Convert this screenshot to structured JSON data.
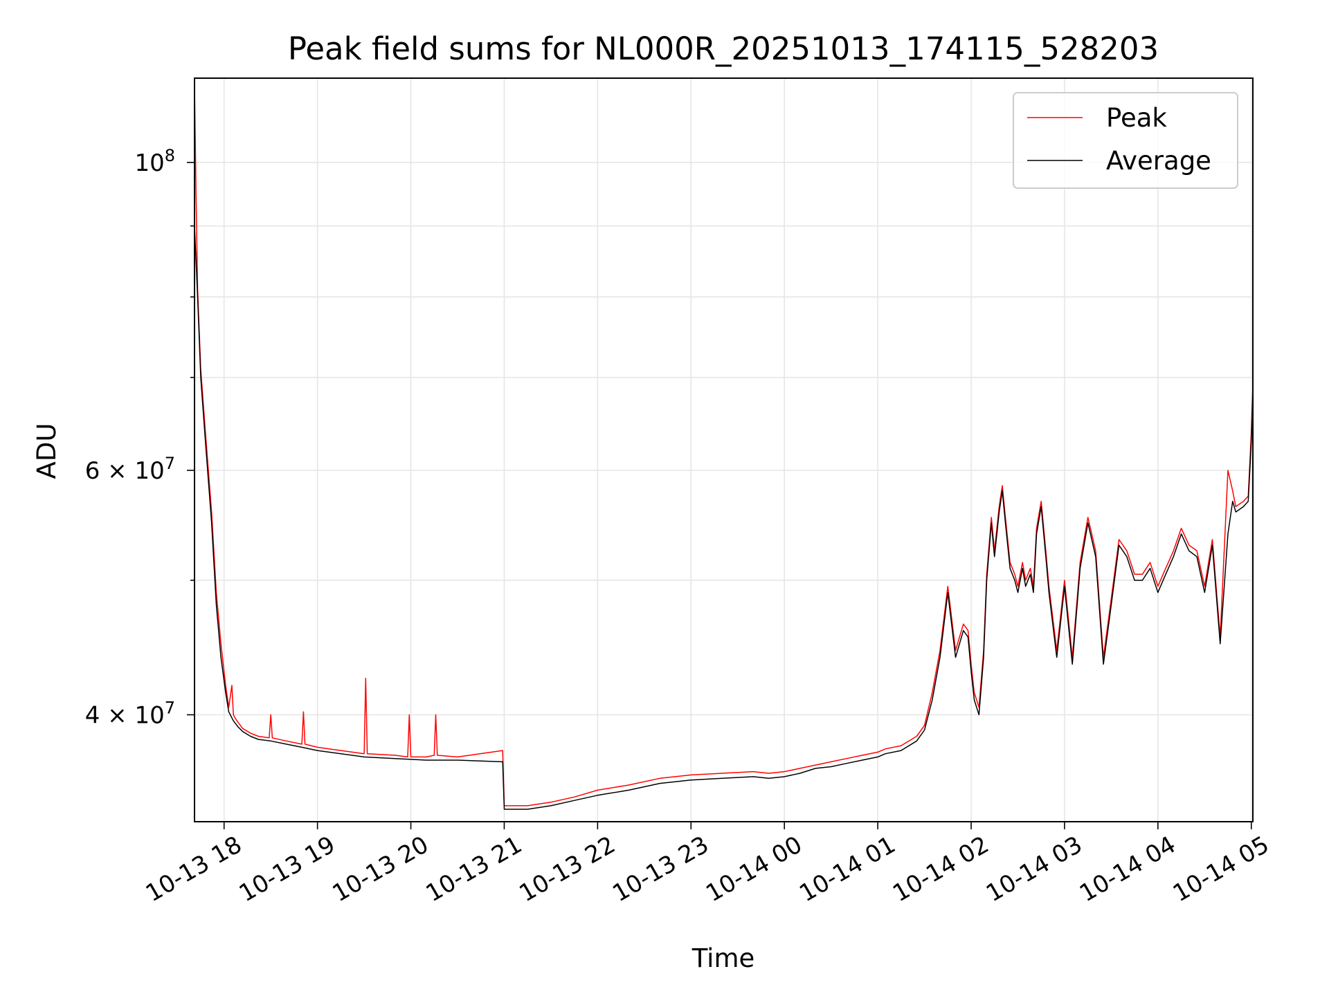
{
  "chart_data": {
    "type": "line",
    "title": "Peak field sums for NL000R_20251013_174115_528203",
    "xlabel": "Time",
    "ylabel": "ADU",
    "x_ticks": [
      "10-13 18",
      "10-13 19",
      "10-13 20",
      "10-13 21",
      "10-13 22",
      "10-13 23",
      "10-14 00",
      "10-14 01",
      "10-14 02",
      "10-14 03",
      "10-14 04",
      "10-14 05"
    ],
    "xlim": [
      "2025-10-13 17:41",
      "2025-10-14 05:01"
    ],
    "y_scale": "log",
    "ylim": [
      33500000,
      115000000
    ],
    "y_tick_labels": [
      {
        "value": 40000000,
        "mantissa": "4",
        "exponent": "7"
      },
      {
        "value": 60000000,
        "mantissa": "6",
        "exponent": "7"
      },
      {
        "value": 100000000,
        "base": "10",
        "exponent": "8"
      }
    ],
    "y_minor_ticks": [
      50000000,
      70000000,
      80000000,
      90000000
    ],
    "grid": true,
    "legend": {
      "position": "top-right",
      "entries": [
        "Peak",
        "Average"
      ]
    },
    "series": [
      {
        "name": "Average",
        "color": "#000000",
        "x": [
          "17:41",
          "17:43",
          "17:45",
          "17:48",
          "17:52",
          "17:55",
          "17:58",
          "18:01",
          "18:03",
          "18:06",
          "18:09",
          "18:12",
          "18:17",
          "18:22",
          "18:30",
          "18:40",
          "18:50",
          "19:00",
          "19:15",
          "19:30",
          "19:50",
          "20:10",
          "20:30",
          "20:59",
          "21:00",
          "21:15",
          "21:30",
          "21:45",
          "22:00",
          "22:20",
          "22:40",
          "23:00",
          "23:20",
          "23:40",
          "23:50",
          "00:00",
          "00:10",
          "00:20",
          "00:30",
          "00:40",
          "00:50",
          "01:00",
          "01:05",
          "01:15",
          "01:25",
          "01:30",
          "01:35",
          "01:40",
          "01:45",
          "01:50",
          "01:55",
          "01:58",
          "02:00",
          "02:02",
          "02:05",
          "02:08",
          "02:10",
          "02:13",
          "02:15",
          "02:18",
          "02:20",
          "02:22",
          "02:25",
          "02:28",
          "02:30",
          "02:33",
          "02:35",
          "02:38",
          "02:40",
          "02:42",
          "02:45",
          "02:48",
          "02:50",
          "02:55",
          "03:00",
          "03:05",
          "03:10",
          "03:15",
          "03:20",
          "03:25",
          "03:30",
          "03:35",
          "03:40",
          "03:45",
          "03:50",
          "03:55",
          "04:00",
          "04:05",
          "04:10",
          "04:15",
          "04:20",
          "04:25",
          "04:30",
          "04:35",
          "04:40",
          "04:45",
          "04:48",
          "04:50",
          "04:55",
          "04:58",
          "05:00",
          "05:01"
        ],
        "y": [
          90000000,
          80000000,
          70000000,
          63000000,
          55000000,
          48000000,
          44000000,
          41500000,
          40200000,
          39600000,
          39200000,
          38900000,
          38600000,
          38400000,
          38300000,
          38100000,
          37900000,
          37700000,
          37500000,
          37300000,
          37200000,
          37100000,
          37100000,
          37000000,
          34200000,
          34200000,
          34400000,
          34700000,
          35000000,
          35300000,
          35700000,
          35900000,
          36000000,
          36100000,
          36000000,
          36100000,
          36300000,
          36600000,
          36700000,
          36900000,
          37100000,
          37300000,
          37500000,
          37700000,
          38300000,
          39000000,
          41000000,
          44000000,
          49000000,
          44000000,
          46000000,
          45500000,
          43000000,
          41000000,
          40000000,
          44000000,
          50000000,
          55000000,
          52000000,
          56000000,
          58000000,
          55000000,
          51000000,
          50000000,
          49000000,
          51000000,
          49500000,
          50500000,
          49000000,
          54000000,
          56500000,
          52000000,
          49000000,
          44000000,
          49500000,
          43500000,
          51000000,
          55000000,
          52000000,
          43500000,
          48000000,
          53000000,
          52000000,
          50000000,
          50000000,
          51000000,
          49000000,
          50500000,
          52000000,
          54000000,
          52500000,
          52000000,
          49000000,
          53000000,
          45000000,
          54000000,
          57000000,
          56000000,
          56500000,
          57000000,
          63000000,
          68000000
        ]
      },
      {
        "name": "Peak",
        "color": "#ff0000",
        "x": [
          "17:41",
          "17:42",
          "17:43",
          "17:45",
          "17:48",
          "17:52",
          "17:55",
          "17:58",
          "18:01",
          "18:03",
          "18:05",
          "18:06",
          "18:07",
          "18:09",
          "18:12",
          "18:17",
          "18:22",
          "18:29",
          "18:30",
          "18:31",
          "18:40",
          "18:50",
          "18:51",
          "18:52",
          "19:00",
          "19:15",
          "19:30",
          "19:31",
          "19:32",
          "19:50",
          "19:58",
          "19:59",
          "20:00",
          "20:10",
          "20:15",
          "20:16",
          "20:17",
          "20:30",
          "20:59",
          "21:00",
          "21:15",
          "21:30",
          "21:45",
          "22:00",
          "22:20",
          "22:40",
          "23:00",
          "23:20",
          "23:40",
          "23:50",
          "00:00",
          "00:10",
          "00:20",
          "00:30",
          "00:40",
          "00:50",
          "01:00",
          "01:05",
          "01:15",
          "01:25",
          "01:30",
          "01:35",
          "01:40",
          "01:45",
          "01:50",
          "01:55",
          "01:58",
          "02:00",
          "02:02",
          "02:05",
          "02:08",
          "02:10",
          "02:13",
          "02:15",
          "02:18",
          "02:20",
          "02:22",
          "02:25",
          "02:28",
          "02:30",
          "02:33",
          "02:35",
          "02:38",
          "02:40",
          "02:42",
          "02:45",
          "02:48",
          "02:50",
          "02:55",
          "03:00",
          "03:05",
          "03:10",
          "03:15",
          "03:20",
          "03:25",
          "03:30",
          "03:35",
          "03:40",
          "03:45",
          "03:50",
          "03:55",
          "04:00",
          "04:05",
          "04:10",
          "04:15",
          "04:20",
          "04:25",
          "04:30",
          "04:35",
          "04:40",
          "04:45",
          "04:48",
          "04:50",
          "04:55",
          "04:58",
          "05:00",
          "05:01"
        ],
        "y": [
          114000000,
          95000000,
          81000000,
          71000000,
          64000000,
          56000000,
          49000000,
          45000000,
          42000000,
          40500000,
          42000000,
          40000000,
          39800000,
          39500000,
          39100000,
          38800000,
          38600000,
          38500000,
          40000000,
          38500000,
          38300000,
          38100000,
          40200000,
          38100000,
          37900000,
          37700000,
          37500000,
          42500000,
          37500000,
          37400000,
          37300000,
          40000000,
          37300000,
          37300000,
          37400000,
          40000000,
          37400000,
          37300000,
          37700000,
          34400000,
          34400000,
          34600000,
          34900000,
          35300000,
          35600000,
          36000000,
          36200000,
          36300000,
          36400000,
          36300000,
          36400000,
          36600000,
          36800000,
          37000000,
          37200000,
          37400000,
          37600000,
          37800000,
          38000000,
          38600000,
          39300000,
          41500000,
          44500000,
          49500000,
          44500000,
          46500000,
          46000000,
          43500000,
          41500000,
          40500000,
          44500000,
          50500000,
          55500000,
          52500000,
          56500000,
          58500000,
          55500000,
          51500000,
          50500000,
          49500000,
          51500000,
          50000000,
          51000000,
          49500000,
          54500000,
          57000000,
          52500000,
          49500000,
          44500000,
          50000000,
          44000000,
          51500000,
          55500000,
          52500000,
          44000000,
          48500000,
          53500000,
          52500000,
          50500000,
          50500000,
          51500000,
          49500000,
          51000000,
          52500000,
          54500000,
          53000000,
          52500000,
          49500000,
          53500000,
          45500000,
          60000000,
          58000000,
          56500000,
          57000000,
          57500000,
          64000000,
          69000000
        ]
      }
    ]
  }
}
